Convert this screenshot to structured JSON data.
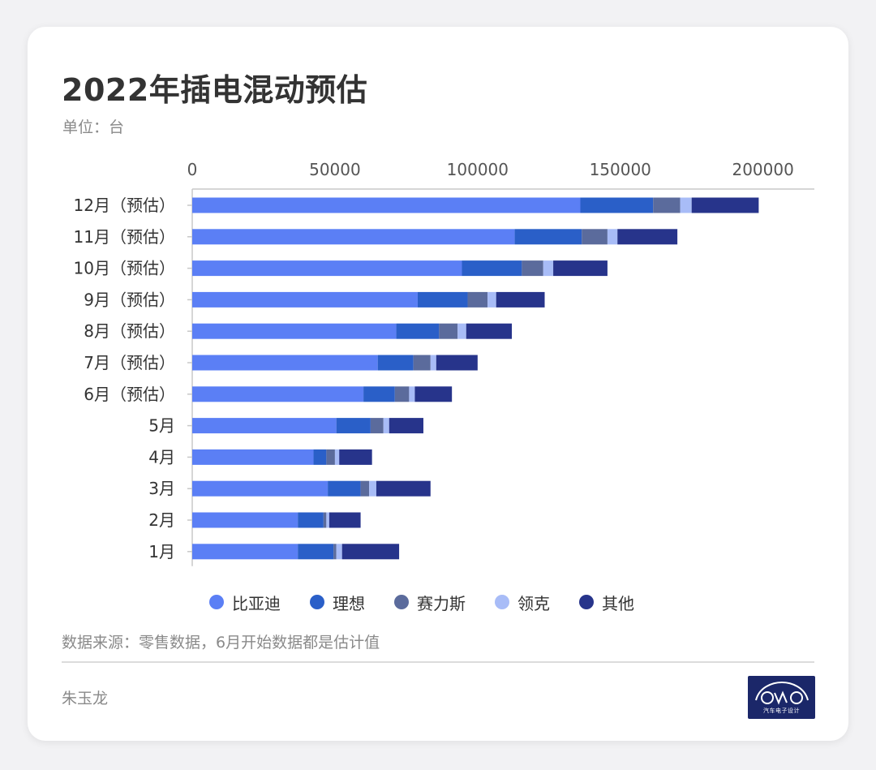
{
  "header": {
    "title": "2022年插电混动预估",
    "subtitle": "单位：台"
  },
  "chart_data": {
    "type": "bar",
    "orientation": "horizontal",
    "stacked": true,
    "xlim": [
      0,
      218000
    ],
    "x_ticks": [
      "0",
      "50000",
      "100000",
      "150000",
      "200000"
    ],
    "x_tick_values": [
      0,
      50000,
      100000,
      150000,
      200000
    ],
    "x_axis_position": "top",
    "grid": false,
    "legend_position": "bottom",
    "categories": [
      "12月（预估）",
      "11月（预估）",
      "10月（预估）",
      "9月（预估）",
      "8月（预估）",
      "7月（预估）",
      "6月（预估）",
      "5月",
      "4月",
      "3月",
      "2月",
      "1月"
    ],
    "series": [
      {
        "name": "比亚迪",
        "color": "#5b7ff5",
        "values": [
          136000,
          113000,
          94500,
          79000,
          71500,
          65000,
          60000,
          50500,
          42500,
          47500,
          37000,
          37000
        ]
      },
      {
        "name": "理想",
        "color": "#2a5fc8",
        "values": [
          25500,
          23500,
          21000,
          17500,
          15000,
          12500,
          11000,
          12000,
          4500,
          11500,
          9000,
          12500
        ]
      },
      {
        "name": "赛力斯",
        "color": "#5b6b9c",
        "values": [
          9500,
          9000,
          7500,
          7000,
          6500,
          6000,
          5000,
          4500,
          3000,
          3000,
          1000,
          1000
        ]
      },
      {
        "name": "领克",
        "color": "#a8bcf7",
        "values": [
          4000,
          3500,
          3500,
          3000,
          3000,
          2000,
          2000,
          2000,
          1500,
          2500,
          1000,
          2000
        ]
      },
      {
        "name": "其他",
        "color": "#27348b",
        "values": [
          23500,
          21000,
          19000,
          17000,
          16000,
          14500,
          13000,
          12000,
          11500,
          19000,
          11000,
          20000
        ]
      }
    ]
  },
  "footer": {
    "source": "数据来源：零售数据，6月开始数据都是估计值",
    "author": "朱玉龙",
    "logo_text": "汽车电子设计"
  }
}
